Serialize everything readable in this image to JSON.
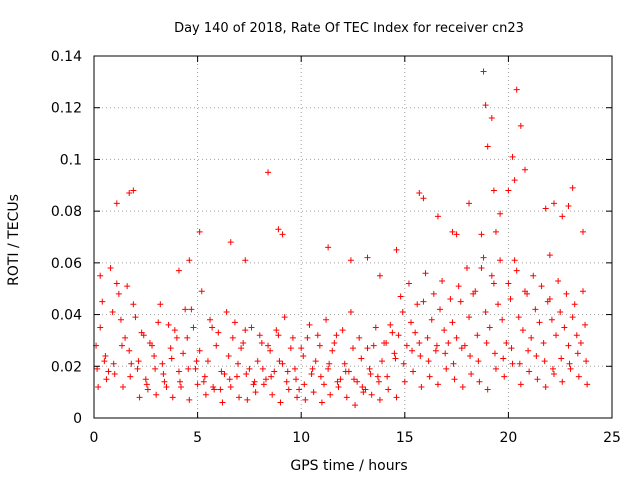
{
  "chart_data": {
    "type": "scatter",
    "title": "Day 140 of 2018, Rate Of TEC Index for receiver cn23",
    "xlabel": "GPS time / hours",
    "ylabel": "ROTI / TECUs",
    "xlim": [
      0,
      25
    ],
    "ylim": [
      0,
      0.14
    ],
    "xticks": [
      0,
      5,
      10,
      15,
      20,
      25
    ],
    "xtick_labels": [
      "0",
      "5",
      "10",
      "15",
      "20",
      "25"
    ],
    "yticks": [
      0,
      0.02,
      0.04,
      0.06,
      0.08,
      0.1,
      0.12,
      0.14
    ],
    "ytick_labels": [
      "0",
      "0.02",
      "0.04",
      "0.06",
      "0.08",
      "0.1",
      "0.12",
      "0.14"
    ],
    "grid": true,
    "marker": "+",
    "color": "#ff0000",
    "series": [
      {
        "name": "ROTI",
        "x": [
          0.1,
          0.3,
          0.5,
          0.7,
          0.9,
          1.1,
          1.3,
          1.5,
          1.7,
          1.9,
          2.1,
          2.3,
          2.5,
          2.7,
          2.9,
          3.1,
          3.3,
          3.5,
          3.7,
          3.9,
          4.1,
          4.3,
          4.5,
          4.7,
          4.9,
          5.1,
          5.3,
          5.5,
          5.7,
          5.9,
          6.1,
          6.3,
          6.5,
          6.7,
          6.9,
          7.1,
          7.3,
          7.5,
          7.7,
          7.9,
          8.1,
          8.3,
          8.5,
          8.7,
          8.9,
          9.1,
          9.3,
          9.5,
          9.7,
          9.9,
          10.1,
          10.3,
          10.5,
          10.7,
          10.9,
          11.1,
          11.3,
          11.5,
          11.7,
          11.9,
          12.1,
          12.3,
          12.5,
          12.7,
          12.9,
          13.1,
          13.3,
          13.5,
          13.7,
          13.9,
          14.1,
          14.3,
          14.5,
          14.7,
          14.9,
          15.1,
          15.3,
          15.5,
          15.7,
          15.9,
          16.1,
          16.3,
          16.5,
          16.7,
          16.9,
          17.1,
          17.3,
          17.5,
          17.7,
          17.9,
          18.1,
          18.3,
          18.5,
          18.7,
          18.9,
          19.1,
          19.3,
          19.5,
          19.7,
          19.9,
          20.1,
          20.3,
          20.5,
          20.7,
          20.9,
          21.1,
          21.3,
          21.5,
          21.7,
          21.9,
          22.1,
          22.3,
          22.5,
          22.7,
          22.9,
          23.1,
          23.3,
          23.5,
          23.7,
          0.2,
          0.6,
          1.0,
          1.4,
          1.8,
          2.2,
          2.6,
          3.0,
          3.4,
          3.8,
          4.2,
          4.6,
          5.0,
          5.4,
          5.8,
          6.2,
          6.6,
          7.0,
          7.4,
          7.8,
          8.2,
          8.6,
          9.0,
          9.4,
          9.8,
          10.2,
          10.6,
          11.0,
          11.4,
          11.8,
          12.2,
          12.6,
          13.0,
          13.4,
          13.8,
          14.2,
          14.6,
          15.0,
          15.4,
          15.8,
          16.2,
          16.6,
          17.0,
          17.4,
          17.8,
          18.2,
          18.6,
          19.0,
          19.4,
          19.8,
          20.2,
          20.6,
          21.0,
          21.4,
          21.8,
          22.2,
          22.6,
          23.0,
          23.4,
          23.8,
          0.4,
          0.8,
          1.2,
          1.6,
          2.0,
          2.4,
          2.8,
          3.2,
          3.6,
          4.0,
          4.4,
          4.8,
          5.2,
          5.6,
          6.0,
          6.4,
          6.8,
          7.2,
          7.6,
          8.0,
          8.4,
          8.8,
          9.2,
          9.6,
          10.0,
          10.4,
          10.8,
          11.2,
          11.6,
          12.0,
          12.4,
          12.8,
          13.2,
          13.6,
          14.0,
          14.4,
          14.8,
          15.2,
          15.6,
          16.0,
          16.4,
          16.8,
          17.2,
          17.6,
          18.0,
          18.4,
          18.8,
          19.2,
          19.6,
          20.0,
          20.4,
          20.8,
          21.2,
          21.6,
          22.0,
          22.4,
          22.8,
          23.2,
          23.6,
          0.15,
          0.55,
          0.95,
          1.35,
          1.75,
          2.15,
          2.55,
          2.95,
          3.35,
          3.75,
          4.15,
          4.55,
          4.95,
          5.35,
          5.75,
          6.15,
          6.55,
          6.95,
          7.35,
          7.75,
          8.15,
          8.55,
          8.95,
          9.35,
          9.75,
          10.15,
          10.55,
          10.95,
          11.35,
          11.75,
          12.15,
          12.55,
          12.95,
          13.35,
          13.75,
          14.15,
          14.55,
          14.95,
          15.35,
          15.75,
          16.15,
          16.55,
          16.95,
          17.35,
          17.75,
          18.15,
          18.55,
          18.95,
          19.35,
          19.75,
          20.15,
          20.55,
          20.95,
          21.35,
          21.75,
          22.15,
          22.55,
          22.95,
          23.35,
          23.75,
          0.3,
          1.1,
          1.7,
          1.9,
          4.1,
          4.6,
          5.1,
          6.6,
          7.3,
          8.4,
          8.9,
          9.1,
          11.3,
          12.4,
          13.2,
          13.8,
          14.6,
          15.7,
          15.9,
          16.6,
          17.3,
          17.5,
          18.1,
          18.7,
          18.8,
          18.9,
          19.0,
          19.2,
          19.3,
          19.4,
          19.6,
          20.0,
          20.2,
          20.3,
          20.4,
          20.6,
          20.8,
          21.8,
          22.0,
          22.2,
          22.6,
          22.9,
          23.1,
          23.6
        ],
        "y": [
          0.028,
          0.035,
          0.022,
          0.018,
          0.041,
          0.052,
          0.038,
          0.031,
          0.026,
          0.044,
          0.019,
          0.033,
          0.015,
          0.029,
          0.024,
          0.037,
          0.021,
          0.012,
          0.027,
          0.034,
          0.018,
          0.025,
          0.031,
          0.042,
          0.019,
          0.026,
          0.014,
          0.022,
          0.035,
          0.028,
          0.011,
          0.017,
          0.024,
          0.031,
          0.016,
          0.027,
          0.034,
          0.019,
          0.013,
          0.022,
          0.029,
          0.015,
          0.026,
          0.018,
          0.032,
          0.021,
          0.014,
          0.027,
          0.019,
          0.011,
          0.024,
          0.031,
          0.017,
          0.022,
          0.028,
          0.013,
          0.019,
          0.026,
          0.032,
          0.015,
          0.021,
          0.018,
          0.027,
          0.014,
          0.023,
          0.011,
          0.019,
          0.028,
          0.016,
          0.022,
          0.029,
          0.036,
          0.025,
          0.032,
          0.041,
          0.028,
          0.037,
          0.033,
          0.029,
          0.045,
          0.031,
          0.038,
          0.026,
          0.042,
          0.034,
          0.029,
          0.037,
          0.031,
          0.045,
          0.028,
          0.039,
          0.048,
          0.032,
          0.058,
          0.041,
          0.035,
          0.052,
          0.044,
          0.038,
          0.029,
          0.046,
          0.061,
          0.039,
          0.034,
          0.048,
          0.031,
          0.042,
          0.037,
          0.029,
          0.045,
          0.038,
          0.032,
          0.041,
          0.035,
          0.028,
          0.039,
          0.032,
          0.029,
          0.036,
          0.012,
          0.015,
          0.017,
          0.012,
          0.021,
          0.008,
          0.011,
          0.009,
          0.014,
          0.008,
          0.012,
          0.007,
          0.013,
          0.009,
          0.011,
          0.006,
          0.012,
          0.008,
          0.007,
          0.01,
          0.013,
          0.009,
          0.006,
          0.011,
          0.008,
          0.007,
          0.01,
          0.006,
          0.009,
          0.012,
          0.008,
          0.005,
          0.01,
          0.009,
          0.007,
          0.011,
          0.008,
          0.014,
          0.018,
          0.012,
          0.016,
          0.013,
          0.019,
          0.015,
          0.012,
          0.017,
          0.014,
          0.011,
          0.019,
          0.016,
          0.021,
          0.013,
          0.018,
          0.015,
          0.012,
          0.017,
          0.014,
          0.019,
          0.016,
          0.013,
          0.045,
          0.058,
          0.048,
          0.051,
          0.039,
          0.032,
          0.028,
          0.044,
          0.036,
          0.031,
          0.042,
          0.035,
          0.049,
          0.038,
          0.033,
          0.041,
          0.037,
          0.029,
          0.035,
          0.032,
          0.028,
          0.034,
          0.039,
          0.031,
          0.027,
          0.036,
          0.032,
          0.038,
          0.029,
          0.034,
          0.041,
          0.031,
          0.027,
          0.035,
          0.029,
          0.033,
          0.047,
          0.052,
          0.044,
          0.056,
          0.048,
          0.053,
          0.046,
          0.051,
          0.058,
          0.049,
          0.062,
          0.055,
          0.061,
          0.052,
          0.057,
          0.049,
          0.055,
          0.051,
          0.046,
          0.053,
          0.048,
          0.044,
          0.049,
          0.019,
          0.024,
          0.021,
          0.028,
          0.016,
          0.022,
          0.013,
          0.019,
          0.017,
          0.023,
          0.014,
          0.019,
          0.022,
          0.016,
          0.012,
          0.018,
          0.015,
          0.021,
          0.017,
          0.014,
          0.019,
          0.016,
          0.022,
          0.018,
          0.015,
          0.013,
          0.019,
          0.016,
          0.021,
          0.014,
          0.018,
          0.015,
          0.012,
          0.017,
          0.014,
          0.016,
          0.023,
          0.021,
          0.026,
          0.024,
          0.022,
          0.028,
          0.025,
          0.021,
          0.027,
          0.024,
          0.022,
          0.029,
          0.025,
          0.023,
          0.027,
          0.021,
          0.026,
          0.024,
          0.022,
          0.019,
          0.023,
          0.021,
          0.025,
          0.022,
          0.055,
          0.083,
          0.087,
          0.088,
          0.057,
          0.061,
          0.072,
          0.068,
          0.061,
          0.095,
          0.073,
          0.071,
          0.066,
          0.061,
          0.062,
          0.055,
          0.065,
          0.087,
          0.085,
          0.078,
          0.072,
          0.071,
          0.083,
          0.071,
          0.134,
          0.121,
          0.105,
          0.116,
          0.088,
          0.072,
          0.079,
          0.088,
          0.101,
          0.092,
          0.127,
          0.113,
          0.096,
          0.081,
          0.063,
          0.083,
          0.078,
          0.082,
          0.089,
          0.072
        ]
      }
    ]
  }
}
